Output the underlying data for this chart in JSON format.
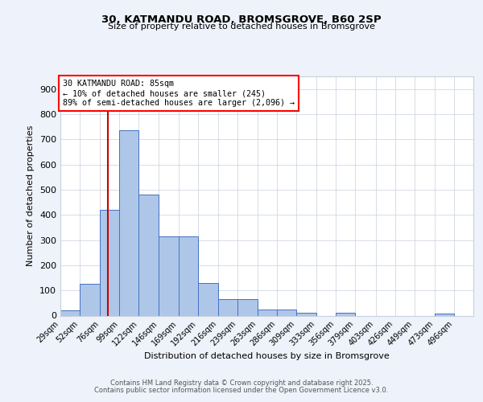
{
  "title1": "30, KATMANDU ROAD, BROMSGROVE, B60 2SP",
  "title2": "Size of property relative to detached houses in Bromsgrove",
  "xlabel": "Distribution of detached houses by size in Bromsgrove",
  "ylabel": "Number of detached properties",
  "annotation_title": "30 KATMANDU ROAD: 85sqm",
  "annotation_line1": "← 10% of detached houses are smaller (245)",
  "annotation_line2": "89% of semi-detached houses are larger (2,096) →",
  "red_line_x": 85,
  "bar_edges": [
    29,
    52,
    76,
    99,
    122,
    146,
    169,
    192,
    216,
    239,
    263,
    286,
    309,
    333,
    356,
    379,
    403,
    426,
    449,
    473,
    496
  ],
  "bar_heights": [
    20,
    125,
    420,
    735,
    480,
    315,
    315,
    130,
    65,
    65,
    25,
    25,
    10,
    0,
    10,
    0,
    0,
    0,
    0,
    8,
    0
  ],
  "bar_color": "#aec6e8",
  "bar_edge_color": "#4472c4",
  "red_line_color": "#cc0000",
  "background_color": "#eef2fa",
  "plot_bg_color": "#ffffff",
  "grid_color": "#c8d0dc",
  "ylim": [
    0,
    950
  ],
  "yticks": [
    0,
    100,
    200,
    300,
    400,
    500,
    600,
    700,
    800,
    900
  ],
  "footer1": "Contains HM Land Registry data © Crown copyright and database right 2025.",
  "footer2": "Contains public sector information licensed under the Open Government Licence v3.0."
}
